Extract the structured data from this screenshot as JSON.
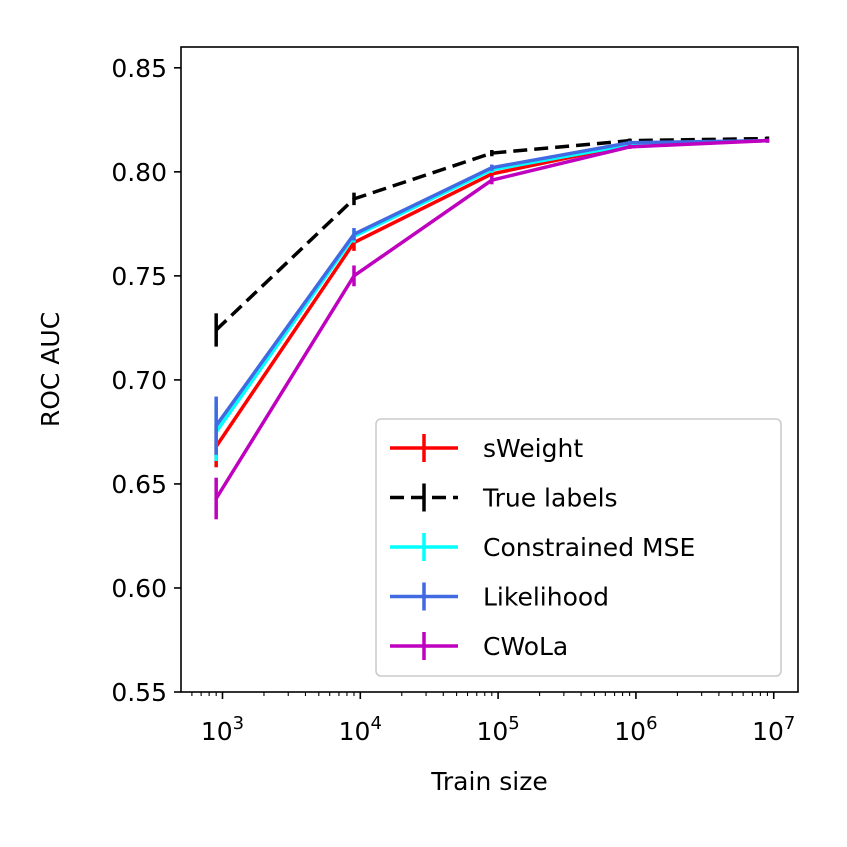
{
  "chart_data": {
    "type": "line",
    "title": "",
    "xlabel": "Train size",
    "ylabel": "ROC AUC",
    "xscale": "log",
    "xlim": [
      500,
      15000000
    ],
    "ylim": [
      0.55,
      0.86
    ],
    "x": [
      900,
      9000,
      90000,
      900000,
      9000000
    ],
    "xtick_values": [
      1000,
      10000,
      100000,
      1000000,
      10000000
    ],
    "xtick_labels": [
      {
        "base": "10",
        "exp": "3"
      },
      {
        "base": "10",
        "exp": "4"
      },
      {
        "base": "10",
        "exp": "5"
      },
      {
        "base": "10",
        "exp": "6"
      },
      {
        "base": "10",
        "exp": "7"
      }
    ],
    "ytick_values": [
      0.55,
      0.6,
      0.65,
      0.7,
      0.75,
      0.8,
      0.85
    ],
    "ytick_labels": [
      "0.55",
      "0.60",
      "0.65",
      "0.70",
      "0.75",
      "0.80",
      "0.85"
    ],
    "grid": false,
    "legend_position": "lower-right",
    "series": [
      {
        "name": "sWeight",
        "color": "#ff0000",
        "dash": "solid",
        "values": [
          0.668,
          0.766,
          0.799,
          0.813,
          0.815
        ],
        "errors": [
          0.01,
          0.004,
          0.0015,
          0.001,
          0.001
        ]
      },
      {
        "name": "True labels",
        "color": "#000000",
        "dash": "dashed",
        "values": [
          0.724,
          0.787,
          0.809,
          0.815,
          0.816
        ],
        "errors": [
          0.008,
          0.003,
          0.0015,
          0.001,
          0.001
        ]
      },
      {
        "name": "Constrained MSE",
        "color": "#00ffff",
        "dash": "solid",
        "values": [
          0.675,
          0.769,
          0.801,
          0.813,
          0.815
        ],
        "errors": [
          0.014,
          0.003,
          0.0015,
          0.001,
          0.001
        ]
      },
      {
        "name": "Likelihood",
        "color": "#4169e1",
        "dash": "solid",
        "values": [
          0.678,
          0.77,
          0.802,
          0.814,
          0.815
        ],
        "errors": [
          0.014,
          0.003,
          0.0015,
          0.001,
          0.001
        ]
      },
      {
        "name": "CWoLa",
        "color": "#bf00bf",
        "dash": "solid",
        "values": [
          0.643,
          0.75,
          0.796,
          0.812,
          0.815
        ],
        "errors": [
          0.01,
          0.005,
          0.002,
          0.001,
          0.001
        ]
      }
    ]
  }
}
